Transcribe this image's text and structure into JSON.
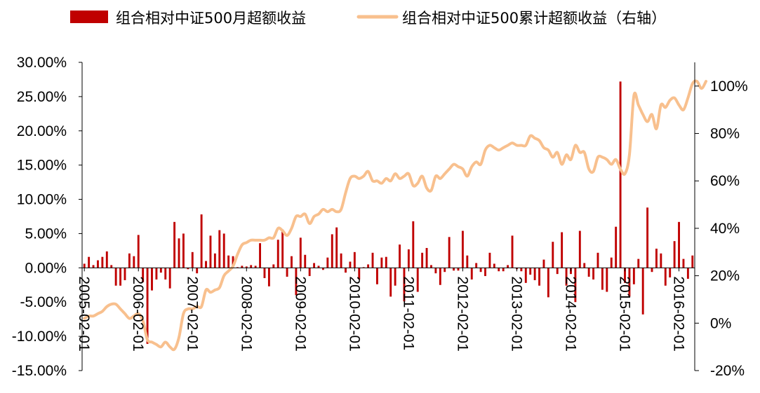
{
  "chart_data": {
    "type": "bar+line",
    "title": "",
    "legend": {
      "position": "top",
      "items": [
        {
          "name": "组合相对中证500月超额收益",
          "kind": "bar",
          "color": "#C00000"
        },
        {
          "name": "组合相对中证500累计超额收益（右轴）",
          "kind": "line",
          "color": "#F8C08E"
        }
      ]
    },
    "left_axis": {
      "min": -0.15,
      "max": 0.3,
      "ticks": [
        "30.00%",
        "25.00%",
        "20.00%",
        "15.00%",
        "10.00%",
        "5.00%",
        "0.00%",
        "-5.00%",
        "-10.00%",
        "-15.00%"
      ],
      "tick_values": [
        0.3,
        0.25,
        0.2,
        0.15,
        0.1,
        0.05,
        0.0,
        -0.05,
        -0.1,
        -0.15
      ]
    },
    "right_axis": {
      "min": -0.2,
      "max": 1.1,
      "ticks": [
        "100%",
        "80%",
        "60%",
        "40%",
        "20%",
        "0%",
        "-20%"
      ],
      "tick_values": [
        1.0,
        0.8,
        0.6,
        0.4,
        0.2,
        0.0,
        -0.2
      ]
    },
    "x_axis": {
      "start_month": "2005-02-01",
      "ticks": [
        "2005-02-01",
        "2006-02-01",
        "2007-02-01",
        "2008-02-01",
        "2009-02-01",
        "2010-02-01",
        "2011-02-01",
        "2012-02-01",
        "2013-02-01",
        "2014-02-01",
        "2015-02-01",
        "2016-02-01"
      ],
      "tick_positions": [
        0,
        12,
        24,
        36,
        48,
        60,
        72,
        84,
        96,
        108,
        120,
        132
      ]
    },
    "grid": false,
    "series": [
      {
        "name": "组合相对中证500月超额收益",
        "type": "bar",
        "axis": "left",
        "color": "#C00000",
        "values": [
          0.006,
          0.016,
          0.004,
          0.011,
          0.016,
          0.024,
          0.004,
          -0.026,
          -0.026,
          -0.018,
          0.021,
          0.017,
          0.048,
          -0.021,
          -0.111,
          -0.033,
          -0.017,
          -0.007,
          -0.017,
          -0.03,
          0.067,
          0.043,
          0.05,
          -0.002,
          0.023,
          -0.008,
          0.078,
          0.01,
          0.047,
          0.021,
          0.055,
          0.05,
          0.018,
          0.017,
          0.001,
          0.003,
          0.002,
          0.004,
          0.003,
          0.036,
          -0.015,
          -0.027,
          0.005,
          0.041,
          0.056,
          -0.013,
          0.017,
          -0.04,
          0.044,
          0.019,
          -0.012,
          0.007,
          0.003,
          -0.003,
          0.015,
          0.049,
          0.059,
          0.021,
          -0.007,
          0.009,
          0.023,
          -0.017,
          0.001,
          0.005,
          0.022,
          -0.024,
          0.015,
          0.016,
          -0.042,
          -0.026,
          0.034,
          -0.049,
          0.027,
          0.068,
          -0.035,
          0.022,
          0.029,
          0.004,
          -0.008,
          -0.025,
          -0.006,
          0.045,
          -0.004,
          -0.004,
          0.054,
          0.018,
          -0.017,
          0.007,
          -0.006,
          -0.012,
          0.022,
          0.006,
          -0.005,
          -0.005,
          0.004,
          0.047,
          -0.002,
          -0.005,
          -0.022,
          -0.01,
          -0.018,
          -0.026,
          0.012,
          -0.043,
          0.038,
          -0.009,
          0.052,
          -0.026,
          -0.009,
          -0.05,
          0.054,
          0.007,
          -0.013,
          -0.017,
          0.022,
          -0.032,
          -0.035,
          0.015,
          0.06,
          0.272,
          -0.022,
          -0.042,
          -0.024,
          0.013,
          -0.068,
          0.088,
          -0.006,
          0.028,
          0.021,
          -0.026,
          -0.014,
          0.039,
          0.067,
          0.013,
          -0.016,
          0.018
        ]
      },
      {
        "name": "组合相对中证500累计超额收益（右轴）",
        "type": "line",
        "axis": "right",
        "color": "#F8C08E",
        "values": [
          0.02,
          0.03,
          0.03,
          0.04,
          0.05,
          0.07,
          0.08,
          0.08,
          0.06,
          0.04,
          0.02,
          0.03,
          0.04,
          0.01,
          -0.07,
          -0.08,
          -0.09,
          -0.1,
          -0.08,
          -0.1,
          -0.11,
          -0.06,
          0.04,
          0.06,
          0.06,
          0.07,
          0.07,
          0.14,
          0.13,
          0.14,
          0.15,
          0.2,
          0.22,
          0.24,
          0.29,
          0.33,
          0.34,
          0.35,
          0.35,
          0.35,
          0.35,
          0.36,
          0.36,
          0.4,
          0.39,
          0.37,
          0.4,
          0.45,
          0.45,
          0.46,
          0.42,
          0.45,
          0.46,
          0.48,
          0.47,
          0.48,
          0.47,
          0.48,
          0.55,
          0.61,
          0.62,
          0.61,
          0.62,
          0.64,
          0.6,
          0.6,
          0.59,
          0.61,
          0.6,
          0.63,
          0.61,
          0.62,
          0.63,
          0.58,
          0.59,
          0.62,
          0.57,
          0.56,
          0.62,
          0.61,
          0.63,
          0.65,
          0.67,
          0.66,
          0.65,
          0.62,
          0.66,
          0.68,
          0.67,
          0.73,
          0.75,
          0.74,
          0.73,
          0.74,
          0.75,
          0.76,
          0.75,
          0.75,
          0.75,
          0.79,
          0.78,
          0.77,
          0.74,
          0.73,
          0.7,
          0.72,
          0.67,
          0.71,
          0.69,
          0.75,
          0.72,
          0.72,
          0.65,
          0.64,
          0.7,
          0.7,
          0.69,
          0.67,
          0.69,
          0.65,
          0.63,
          0.71,
          0.96,
          0.92,
          0.88,
          0.85,
          0.88,
          0.82,
          0.92,
          0.91,
          0.94,
          0.95,
          0.92,
          0.9,
          0.95,
          1.01,
          1.02,
          0.99,
          1.02
        ]
      }
    ]
  }
}
